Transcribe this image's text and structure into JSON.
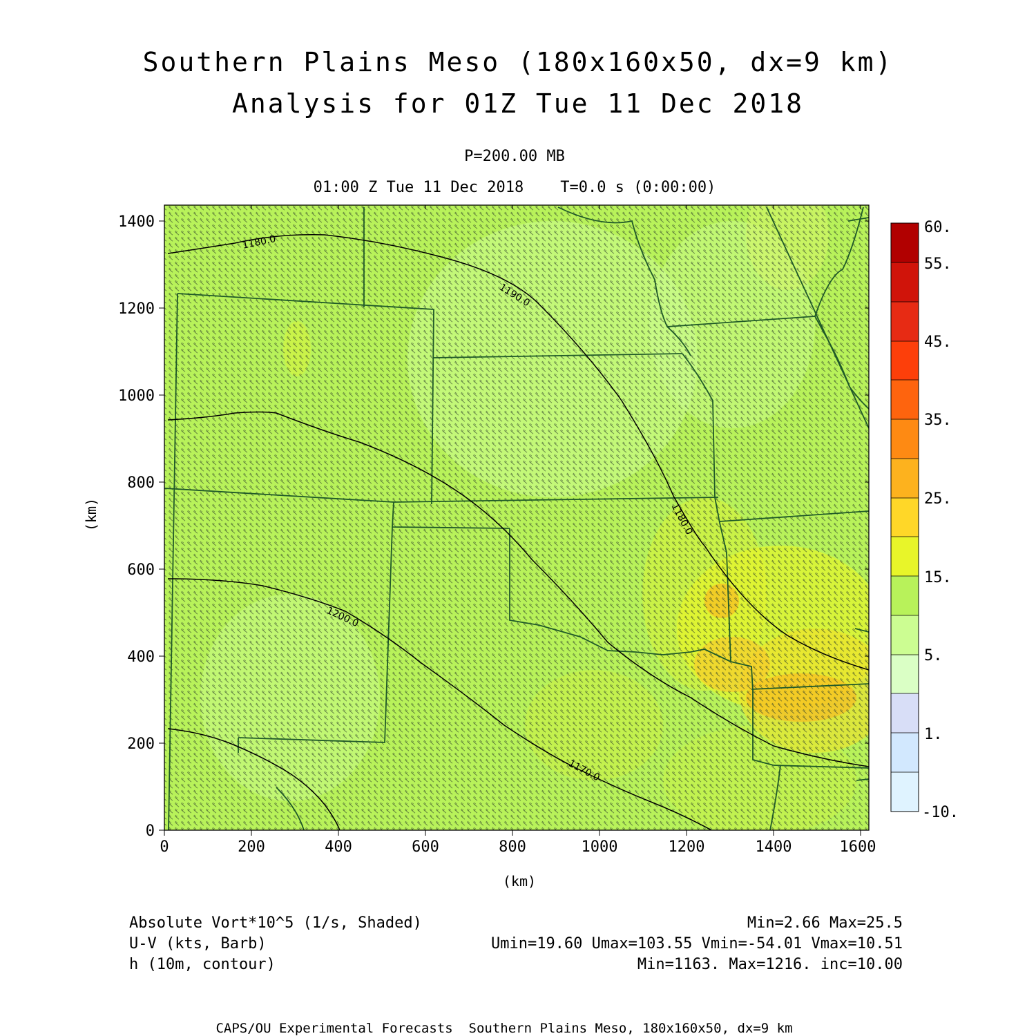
{
  "title": {
    "line1": "Southern Plains Meso (180x160x50, dx=9 km)",
    "line2": "Analysis for 01Z Tue 11 Dec 2018"
  },
  "subtitle": {
    "level": "P=200.00 MB",
    "time": "01:00 Z Tue 11 Dec 2018    T=0.0 s (0:00:00)"
  },
  "axes": {
    "x_label": "(km)",
    "y_label": "(km)",
    "x_ticks": [
      "0",
      "200",
      "400",
      "600",
      "800",
      "1000",
      "1200",
      "1400",
      "1600"
    ],
    "y_ticks": [
      "0",
      "200",
      "400",
      "600",
      "800",
      "1000",
      "1200",
      "1400"
    ]
  },
  "colorbar": {
    "labels": [
      "60.",
      "55.",
      "45.",
      "35.",
      "25.",
      "15.",
      "5.",
      "1.",
      "-10."
    ],
    "colors": [
      "#b10000",
      "#d0140a",
      "#e72b14",
      "#fd3f0a",
      "#fe640e",
      "#fe8a13",
      "#fdb21e",
      "#ffd728",
      "#e8f529",
      "#b8f25a",
      "#ccfd92",
      "#daffc5",
      "#d8def7",
      "#d2e8fe",
      "#dff3ff"
    ]
  },
  "contours": [
    "1180.0",
    "1190.0",
    "1200.0",
    "1180.0",
    "1170.0"
  ],
  "footer": {
    "left1": "Absolute Vort*10^5 (1/s, Shaded)",
    "left2": "U-V (kts, Barb)",
    "left3": "h (10m, contour)",
    "right1": "Min=2.66 Max=25.5",
    "right2": "Umin=19.60 Umax=103.55 Vmin=-54.01 Vmax=10.51",
    "right3": "Min=1163. Max=1216. inc=10.00",
    "credit": "CAPS/OU Experimental Forecasts  Southern Plains Meso, 180x160x50, dx=9 km"
  }
}
